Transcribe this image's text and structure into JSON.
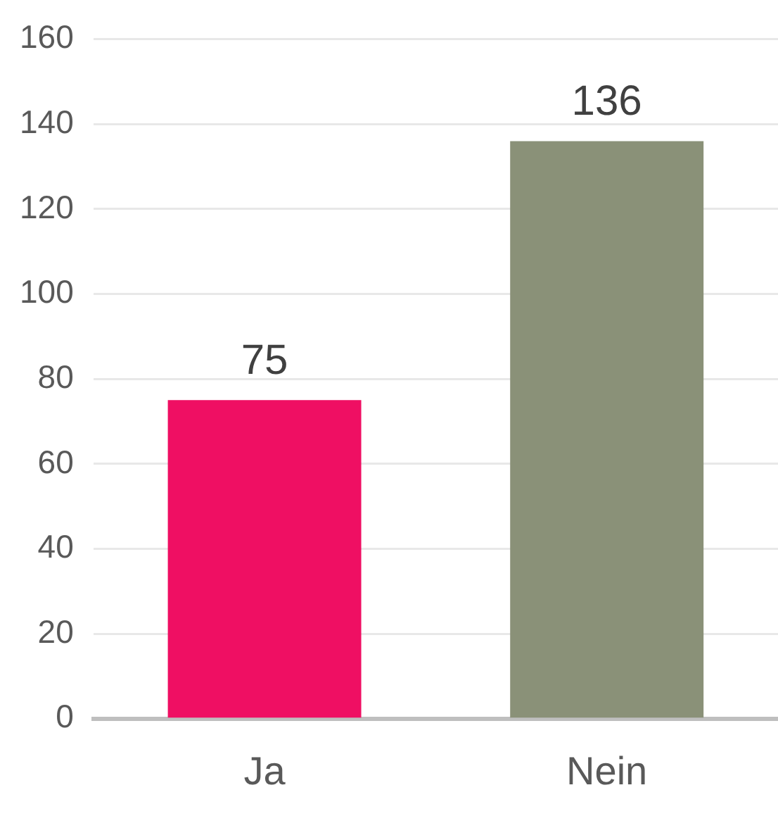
{
  "chart_data": {
    "type": "bar",
    "categories": [
      "Ja",
      "Nein"
    ],
    "colors": [
      "#ef0f63",
      "#8a9178"
    ],
    "values": [
      75,
      136
    ],
    "ylim": [
      0,
      160
    ],
    "yticks": [
      0,
      20,
      40,
      60,
      80,
      100,
      120,
      140,
      160
    ],
    "grid": "y",
    "data_labels": true,
    "legend": false
  }
}
